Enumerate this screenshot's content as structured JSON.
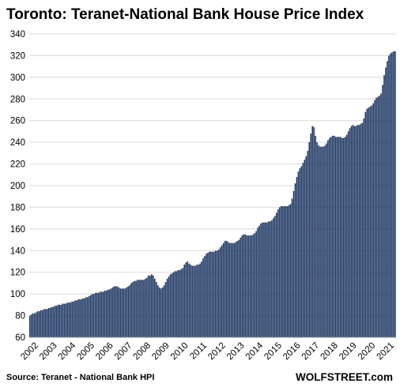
{
  "chart_data": {
    "type": "bar",
    "title": "Toronto: Teranet-National Bank House Price Index",
    "xlabel": "",
    "ylabel": "",
    "source": "Source: Teranet - National Bank HPI",
    "brand": "WOLFSTREET.com",
    "ylim": [
      60,
      340
    ],
    "yticks": [
      60,
      80,
      100,
      120,
      140,
      160,
      180,
      200,
      220,
      240,
      260,
      280,
      300,
      320,
      340
    ],
    "xtick_labels": [
      "2002",
      "2003",
      "2004",
      "2005",
      "2006",
      "2007",
      "2008",
      "2009",
      "2010",
      "2011",
      "2012",
      "2013",
      "2014",
      "2015",
      "2016",
      "2017",
      "2018",
      "2019",
      "2020",
      "2021"
    ],
    "grid": "horizontal",
    "bar_color": "#1f3864",
    "start": "2002-01",
    "frequency": "monthly",
    "values": [
      80,
      81,
      82,
      82,
      83,
      84,
      84,
      85,
      85,
      86,
      86,
      86,
      87,
      87,
      88,
      88,
      89,
      89,
      90,
      90,
      90,
      91,
      91,
      91,
      92,
      92,
      92,
      93,
      93,
      94,
      94,
      95,
      95,
      95,
      96,
      96,
      97,
      97,
      98,
      99,
      100,
      100,
      101,
      101,
      101,
      102,
      102,
      102,
      103,
      103,
      104,
      104,
      105,
      106,
      107,
      107,
      107,
      106,
      105,
      105,
      105,
      105,
      106,
      107,
      108,
      110,
      111,
      112,
      112,
      113,
      113,
      113,
      113,
      113,
      114,
      115,
      117,
      117,
      118,
      117,
      114,
      111,
      108,
      106,
      105,
      106,
      108,
      111,
      114,
      116,
      118,
      119,
      120,
      121,
      121,
      122,
      122,
      123,
      124,
      127,
      129,
      130,
      128,
      127,
      126,
      126,
      126,
      127,
      127,
      128,
      130,
      133,
      135,
      137,
      138,
      139,
      139,
      139,
      139,
      140,
      140,
      141,
      143,
      145,
      147,
      149,
      149,
      148,
      147,
      147,
      147,
      147,
      148,
      149,
      150,
      152,
      154,
      155,
      155,
      154,
      154,
      154,
      154,
      155,
      156,
      158,
      161,
      163,
      165,
      166,
      166,
      166,
      166,
      167,
      167,
      168,
      170,
      172,
      175,
      178,
      180,
      181,
      181,
      181,
      181,
      181,
      182,
      183,
      188,
      195,
      202,
      208,
      213,
      216,
      218,
      221,
      224,
      227,
      232,
      240,
      248,
      255,
      254,
      246,
      240,
      237,
      236,
      236,
      236,
      237,
      239,
      242,
      244,
      245,
      246,
      246,
      245,
      245,
      245,
      245,
      244,
      244,
      245,
      247,
      250,
      253,
      255,
      256,
      255,
      255,
      256,
      256,
      257,
      258,
      262,
      268,
      271,
      272,
      273,
      274,
      276,
      279,
      281,
      282,
      283,
      285,
      293,
      302,
      309,
      315,
      320,
      322,
      323,
      324,
      324
    ]
  }
}
